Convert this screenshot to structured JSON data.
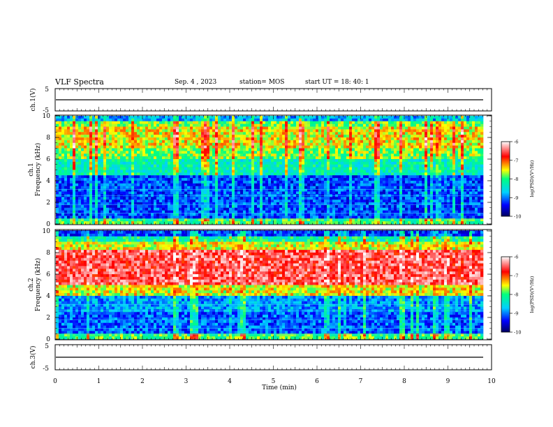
{
  "header": {
    "title": "VLF Spectra",
    "date": "Sep. 4 , 2023",
    "station": "station= MOS",
    "start_ut": "start UT = 18: 40: 1"
  },
  "chart_data": [
    {
      "type": "line",
      "name": "ch1-waveform",
      "ylabel": "ch.1(V)",
      "yticks": [
        "5",
        "-5"
      ],
      "ylim": [
        -5,
        5
      ],
      "xlim": [
        0,
        10
      ],
      "x": [
        0,
        9.8
      ],
      "values": [
        0,
        0
      ]
    },
    {
      "type": "heatmap",
      "name": "ch1-spectrogram",
      "ylabel": "ch.1\nFrequency (kHz)",
      "ylabel_line1": "ch.1",
      "ylabel_line2": "Frequency (kHz)",
      "yticks": [
        "0",
        "2",
        "4",
        "6",
        "8",
        "10"
      ],
      "ylim": [
        0,
        10
      ],
      "xlim": [
        0,
        9.8
      ],
      "colorbar": {
        "label": "log(PSD)(V²/Hz)",
        "range": [
          -10,
          -6
        ],
        "ticks": [
          "-6",
          "-7",
          "-8",
          "-9",
          "-10"
        ]
      }
    },
    {
      "type": "heatmap",
      "name": "ch2-spectrogram",
      "ylabel": "ch.2\nFrequency (kHz)",
      "ylabel_line1": "ch.2",
      "ylabel_line2": "Frequency (kHz)",
      "yticks": [
        "0",
        "2",
        "4",
        "6",
        "8",
        "10"
      ],
      "ylim": [
        0,
        10
      ],
      "xlim": [
        0,
        9.8
      ],
      "colorbar": {
        "label": "log(PSD)(V²/Hz)",
        "range": [
          -10,
          -6
        ],
        "ticks": [
          "-6",
          "-7",
          "-8",
          "-9",
          "-10"
        ]
      }
    },
    {
      "type": "line",
      "name": "ch3-waveform",
      "ylabel": "ch.3(V)",
      "yticks": [
        "5",
        "-5"
      ],
      "ylim": [
        -5,
        5
      ],
      "xlim": [
        0,
        10
      ],
      "x": [
        0,
        9.8
      ],
      "values": [
        0,
        0
      ]
    }
  ],
  "xaxis": {
    "label": "Time (min)",
    "ticks": [
      "0",
      "1",
      "2",
      "3",
      "4",
      "5",
      "6",
      "7",
      "8",
      "9",
      "10"
    ],
    "range": [
      0,
      10
    ]
  },
  "colors": {
    "colormap": [
      "#000060",
      "#0000ff",
      "#00d0ff",
      "#00ff80",
      "#ffff00",
      "#ff0000",
      "#ffffff"
    ]
  }
}
